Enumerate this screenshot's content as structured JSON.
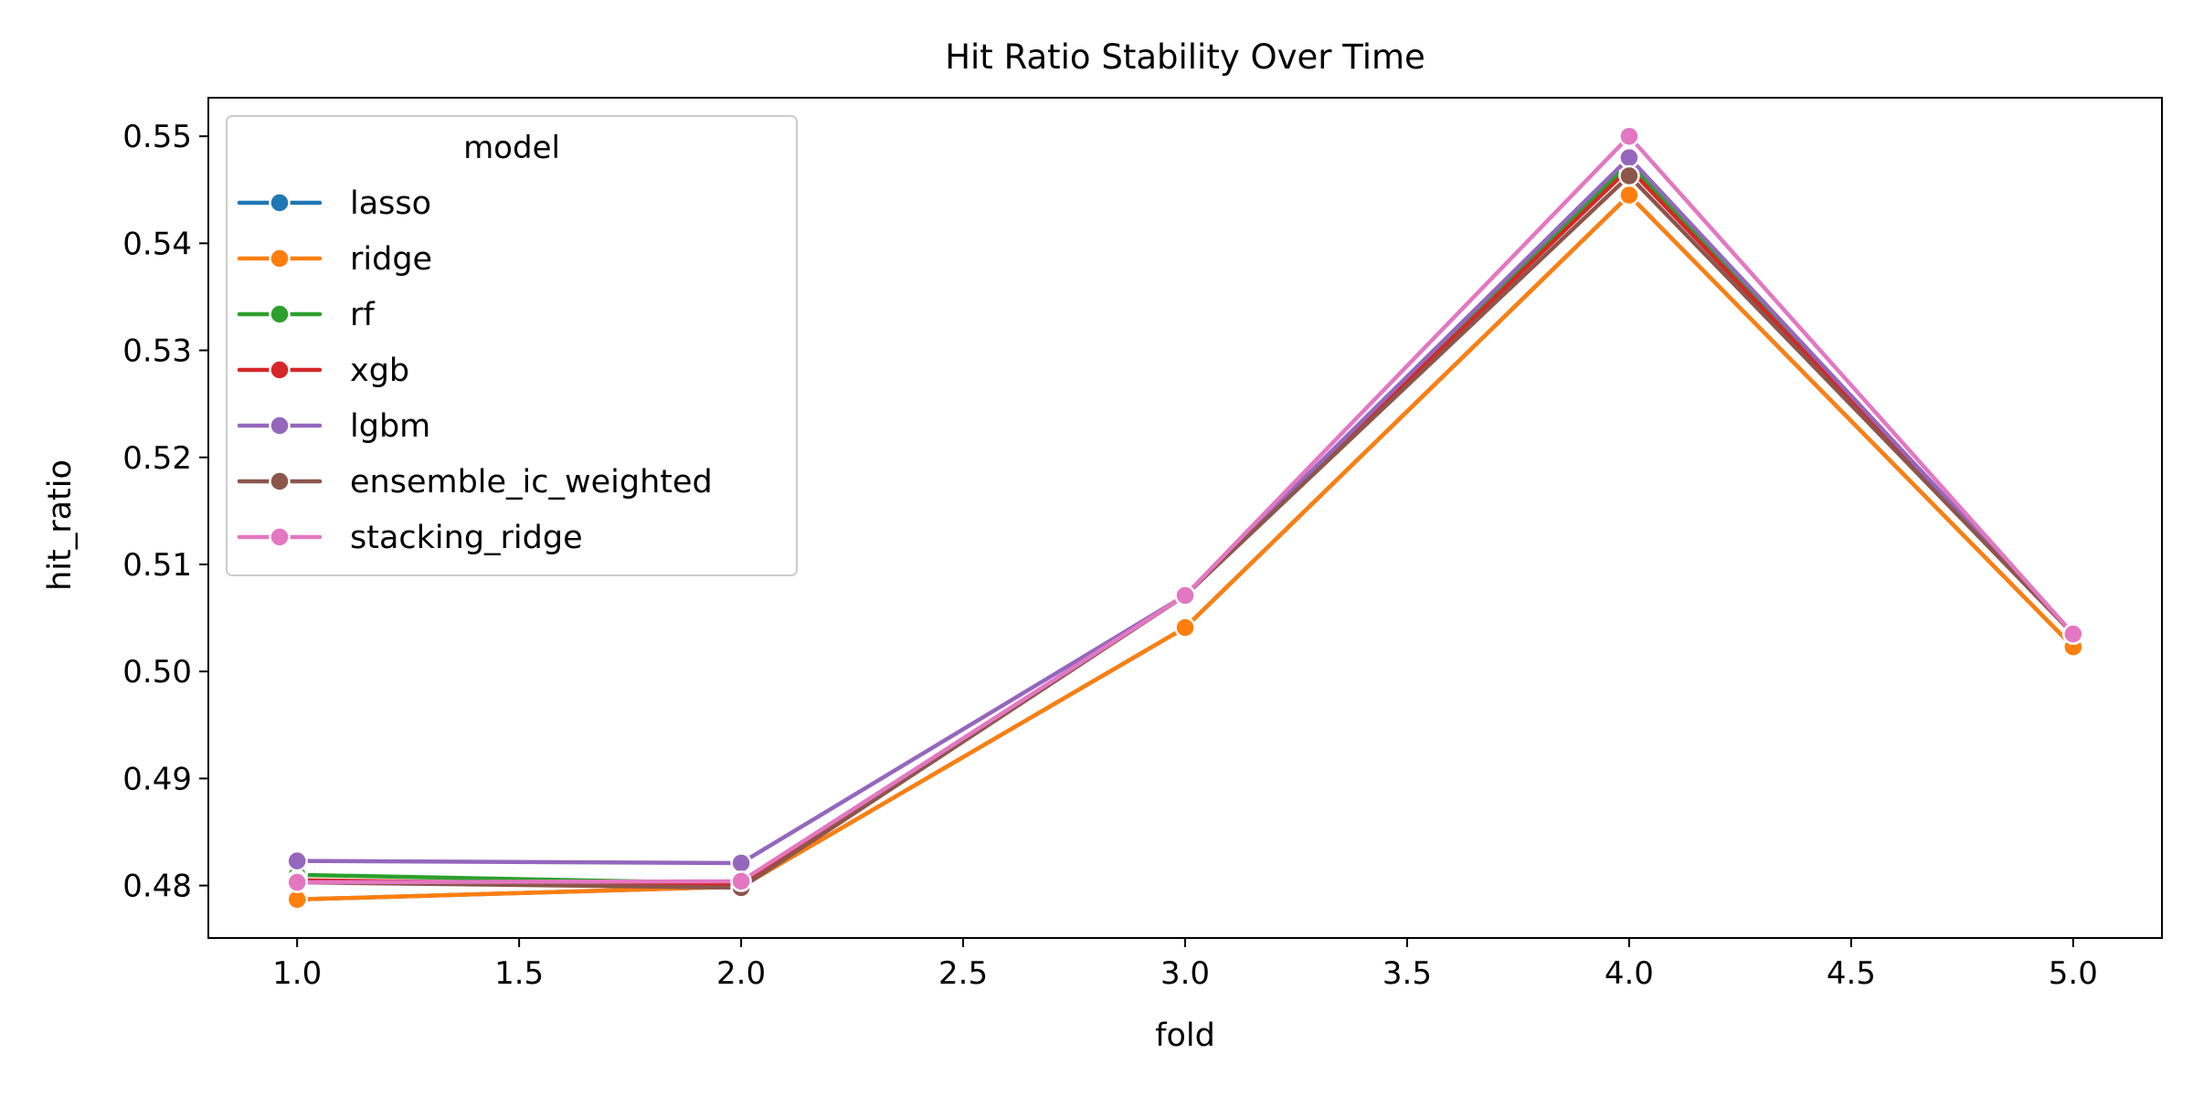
{
  "chart_data": {
    "type": "line",
    "title": "Hit Ratio Stability Over Time",
    "xlabel": "fold",
    "ylabel": "hit_ratio",
    "x": [
      1.0,
      2.0,
      3.0,
      4.0,
      5.0
    ],
    "xlim": [
      0.8,
      5.2
    ],
    "ylim": [
      0.4751,
      0.5536
    ],
    "xticks": [
      1.0,
      1.5,
      2.0,
      2.5,
      3.0,
      3.5,
      4.0,
      4.5,
      5.0
    ],
    "xtick_labels": [
      "1.0",
      "1.5",
      "2.0",
      "2.5",
      "3.0",
      "3.5",
      "4.0",
      "4.5",
      "5.0"
    ],
    "yticks": [
      0.48,
      0.49,
      0.5,
      0.51,
      0.52,
      0.53,
      0.54,
      0.55
    ],
    "ytick_labels": [
      "0.48",
      "0.49",
      "0.50",
      "0.51",
      "0.52",
      "0.53",
      "0.54",
      "0.55"
    ],
    "grid": false,
    "legend": {
      "title": "model",
      "placement": "upper-left"
    },
    "series": [
      {
        "name": "lasso",
        "color": "#1f77b4",
        "values": [
          0.4787,
          0.4799,
          0.5041,
          0.5445,
          0.5023
        ]
      },
      {
        "name": "ridge",
        "color": "#ff7f0e",
        "values": [
          0.4787,
          0.4799,
          0.5041,
          0.5445,
          0.5023
        ]
      },
      {
        "name": "rf",
        "color": "#2ca02c",
        "values": [
          0.481,
          0.4802,
          0.5071,
          0.5475,
          0.5035
        ]
      },
      {
        "name": "xgb",
        "color": "#d62728",
        "values": [
          0.4805,
          0.48,
          0.5071,
          0.547,
          0.5035
        ]
      },
      {
        "name": "lgbm",
        "color": "#9467bd",
        "values": [
          0.4823,
          0.4821,
          0.5071,
          0.548,
          0.5035
        ]
      },
      {
        "name": "ensemble_ic_weighted",
        "color": "#8c564b",
        "values": [
          0.4803,
          0.4798,
          0.5071,
          0.5463,
          0.5035
        ]
      },
      {
        "name": "stacking_ridge",
        "color": "#e377c2",
        "values": [
          0.4803,
          0.4804,
          0.5071,
          0.55,
          0.5035
        ]
      }
    ]
  }
}
